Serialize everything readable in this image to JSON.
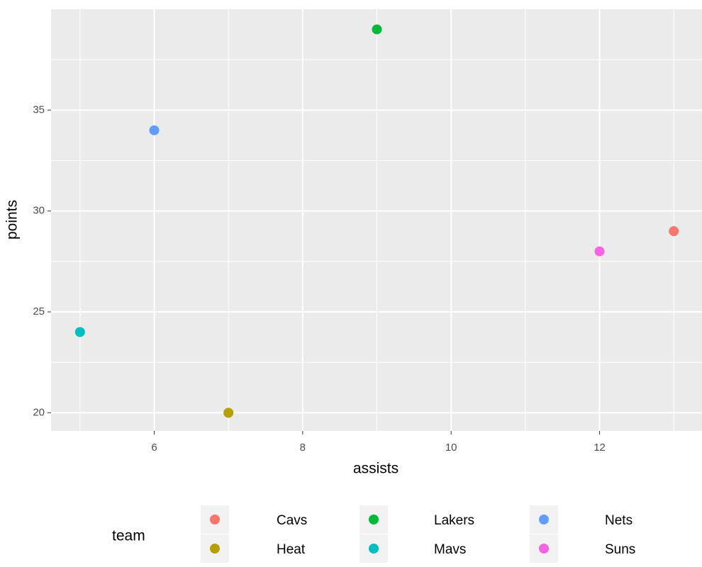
{
  "chart_data": {
    "type": "scatter",
    "x_label": "assists",
    "y_label": "points",
    "legend_title": "team",
    "series": [
      {
        "name": "Cavs",
        "color": "#F8766D",
        "x": [
          13
        ],
        "values": [
          29
        ]
      },
      {
        "name": "Heat",
        "color": "#B79F00",
        "x": [
          7
        ],
        "values": [
          20
        ]
      },
      {
        "name": "Lakers",
        "color": "#00BA38",
        "x": [
          9
        ],
        "values": [
          39
        ]
      },
      {
        "name": "Mavs",
        "color": "#00BFC4",
        "x": [
          5
        ],
        "values": [
          24
        ]
      },
      {
        "name": "Nets",
        "color": "#619CFF",
        "x": [
          6
        ],
        "values": [
          34
        ]
      },
      {
        "name": "Suns",
        "color": "#F564E3",
        "x": [
          12
        ],
        "values": [
          28
        ]
      }
    ],
    "xlim": [
      4.61,
      13.38
    ],
    "xticks": [
      6,
      8,
      10,
      12
    ],
    "ylim": [
      19.1,
      40
    ],
    "yticks": [
      20,
      25,
      30,
      35
    ],
    "grid": true,
    "legend_position": "bottom"
  }
}
